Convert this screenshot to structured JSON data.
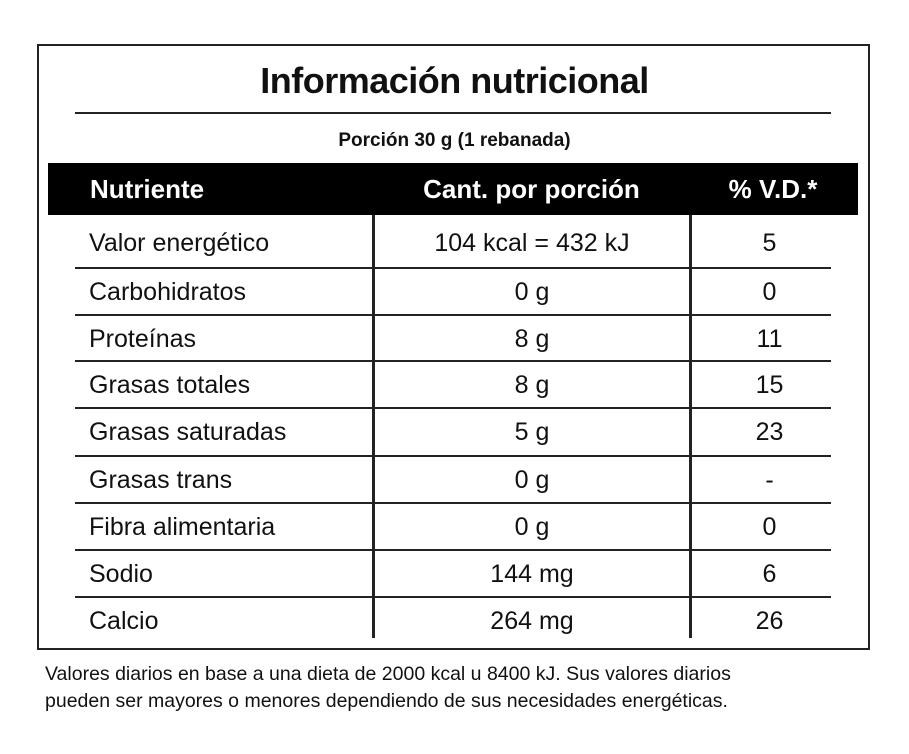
{
  "title": "Información nutricional",
  "serving": "Porción 30 g (1 rebanada)",
  "table": {
    "header": [
      "Nutriente",
      "Cant. por porción",
      "% V.D.*"
    ],
    "rows": [
      [
        "Valor energético",
        "104 kcal = 432 kJ",
        "5"
      ],
      [
        "Carbohidratos",
        "0 g",
        "0"
      ],
      [
        "Proteínas",
        "8 g",
        "11"
      ],
      [
        "Grasas totales",
        "8 g",
        "15"
      ],
      [
        "Grasas saturadas",
        "5 g",
        "23"
      ],
      [
        "Grasas trans",
        "0 g",
        "-"
      ],
      [
        "Fibra alimentaria",
        "0 g",
        "0"
      ],
      [
        "Sodio",
        "144 mg",
        "6"
      ],
      [
        "Calcio",
        "264 mg",
        "26"
      ]
    ]
  },
  "footnote": [
    "Valores diarios en base a una dieta de 2000 kcal u 8400 kJ. Sus valores diarios",
    "pueden ser mayores o menores dependiendo de sus necesidades energéticas."
  ]
}
